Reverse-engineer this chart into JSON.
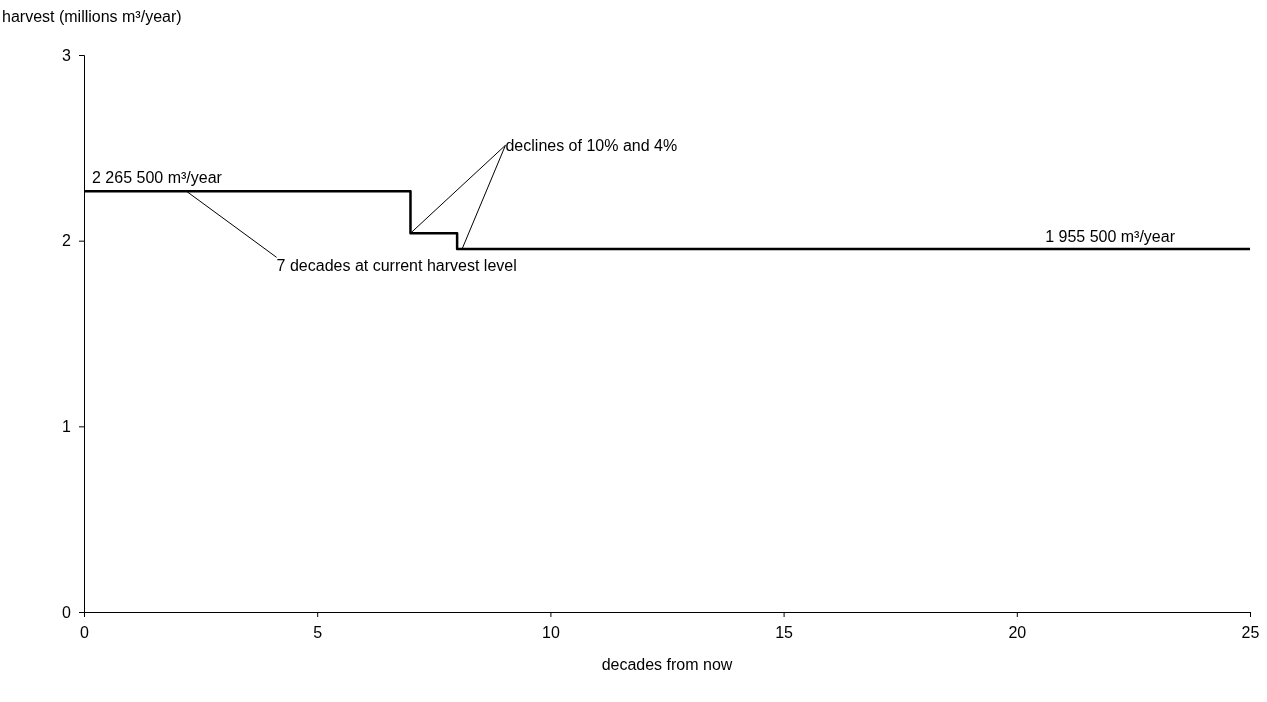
{
  "chart_data": {
    "type": "step",
    "xlabel": "decades from now",
    "ylabel": "harvest (millions m³/year)",
    "x": [
      0,
      7,
      8,
      25
    ],
    "values": [
      2.2655,
      2.04,
      1.9555,
      1.9555
    ],
    "color": "#000000",
    "xlim": [
      0,
      25
    ],
    "xticks": [
      0,
      5,
      10,
      15,
      20,
      25
    ],
    "ylim": [
      0,
      3
    ],
    "yticks": [
      0,
      1,
      2,
      3
    ],
    "grid": false,
    "marker": "none",
    "line_style": "solid",
    "annotations": [
      {
        "text": "2 265 500 m³/year",
        "x": 0,
        "y": 2.2655
      },
      {
        "text": "7 decades at current harvest level",
        "x": 2.2,
        "y": 2.2655
      },
      {
        "text": "declines of 10% and 4%",
        "x": 7,
        "y": 2.04
      },
      {
        "text": "1 955 500 m³/year",
        "x": 22,
        "y": 1.9555
      }
    ]
  }
}
